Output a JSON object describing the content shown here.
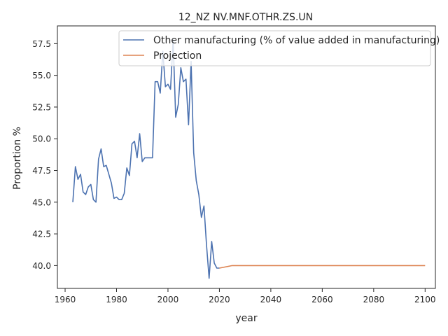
{
  "chart_data": {
    "type": "line",
    "title": "12_NZ NV.MNF.OTHR.ZS.UN",
    "xlabel": "year",
    "ylabel": "Proportion %",
    "xlim": [
      1957,
      2104
    ],
    "ylim": [
      38.2,
      58.9
    ],
    "xticks": [
      1960,
      1980,
      2000,
      2020,
      2040,
      2060,
      2080,
      2100
    ],
    "yticks": [
      40.0,
      42.5,
      45.0,
      47.5,
      50.0,
      52.5,
      55.0,
      57.5
    ],
    "xtick_labels": [
      "1960",
      "1980",
      "2000",
      "2020",
      "2040",
      "2060",
      "2080",
      "2100"
    ],
    "ytick_labels": [
      "40.0",
      "42.5",
      "45.0",
      "47.5",
      "50.0",
      "52.5",
      "55.0",
      "57.5"
    ],
    "legend_position": "top-right",
    "grid": false,
    "series": [
      {
        "name": "Other manufacturing (% of value added in manufacturing)",
        "color": "#4c72b0",
        "x": [
          1963,
          1964,
          1965,
          1966,
          1967,
          1968,
          1969,
          1970,
          1971,
          1972,
          1973,
          1974,
          1975,
          1976,
          1977,
          1978,
          1979,
          1980,
          1981,
          1982,
          1983,
          1984,
          1985,
          1986,
          1987,
          1988,
          1989,
          1990,
          1991,
          1992,
          1993,
          1994,
          1995,
          1996,
          1997,
          1998,
          1999,
          2000,
          2001,
          2002,
          2003,
          2004,
          2005,
          2006,
          2007,
          2008,
          2009,
          2010,
          2011,
          2012,
          2013,
          2014,
          2015,
          2016,
          2017,
          2018,
          2019,
          2020
        ],
        "y": [
          45.0,
          47.8,
          46.8,
          47.2,
          45.8,
          45.6,
          46.2,
          46.4,
          45.2,
          45.0,
          48.4,
          49.2,
          47.8,
          47.9,
          47.2,
          46.5,
          45.3,
          45.4,
          45.2,
          45.2,
          45.7,
          47.7,
          47.1,
          49.6,
          49.8,
          48.5,
          50.4,
          48.2,
          48.5,
          48.5,
          48.5,
          48.5,
          54.5,
          54.5,
          53.6,
          56.9,
          54.1,
          54.3,
          53.9,
          57.8,
          51.7,
          52.7,
          55.6,
          54.5,
          54.7,
          51.1,
          56.1,
          48.9,
          46.7,
          45.6,
          43.8,
          44.7,
          41.6,
          39.0,
          41.9,
          40.2,
          39.8,
          39.8
        ]
      },
      {
        "name": "Projection",
        "color": "#dd8452",
        "x": [
          2020,
          2025,
          2100
        ],
        "y": [
          39.8,
          40.0,
          40.0
        ]
      }
    ]
  }
}
